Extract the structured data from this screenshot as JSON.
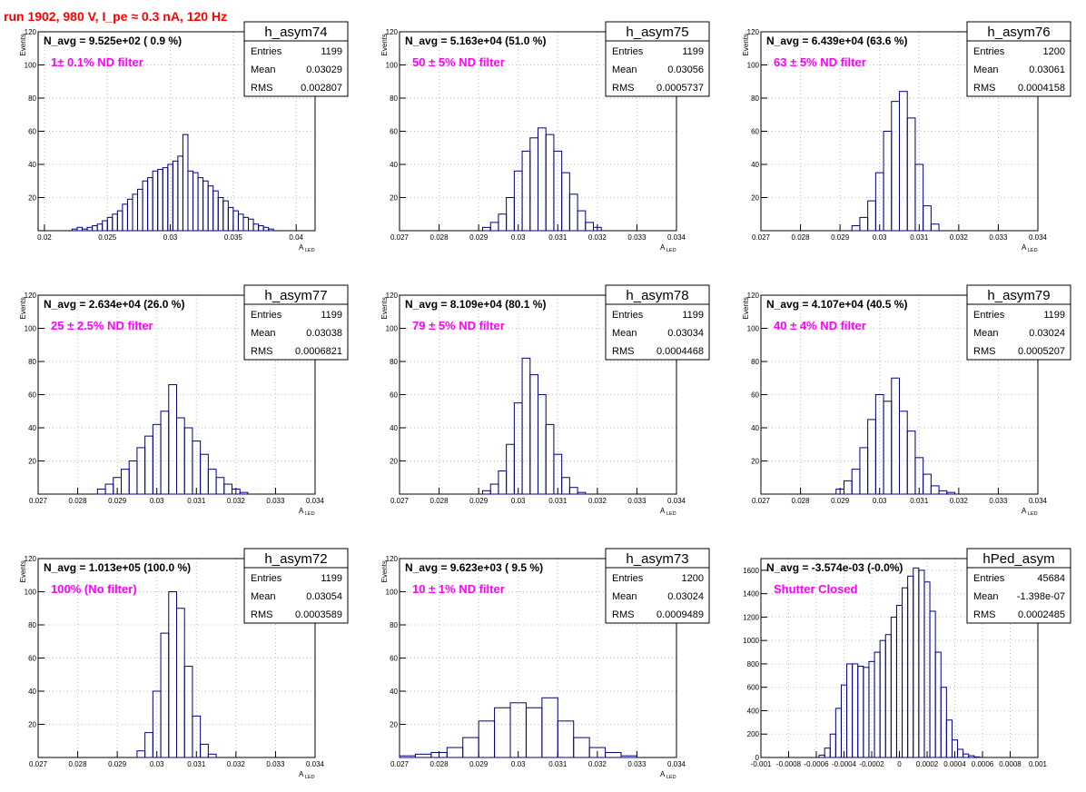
{
  "header": {
    "run_title": "run 1902,   980 V, I_pe ≈ 0.3 nA, 120 Hz"
  },
  "colors": {
    "histogram": "#000080",
    "filter_label": "#ff00ff",
    "title": "#ff0000",
    "grid": "#bdbdbd"
  },
  "stat_labels": {
    "entries": "Entries",
    "mean": "Mean",
    "rms": "RMS"
  },
  "chart_data": [
    {
      "type": "histogram",
      "name": "h_asym74",
      "header": "N_avg = 9.525e+02 ( 0.9 %)",
      "filter": "1± 0.1% ND filter",
      "stats": {
        "entries": "1199",
        "mean": "0.03029",
        "rms": "0.002807"
      },
      "xlabel": "A",
      "xlabel_sub": "LED",
      "ylabel": "Events",
      "xlim": [
        0.0195,
        0.0415
      ],
      "ylim": [
        0,
        120
      ],
      "xticks": [
        0.02,
        0.025,
        0.03,
        0.035,
        0.04
      ],
      "xtick_labels": [
        "0.02",
        "0.025",
        "0.03",
        "0.035",
        "0.04"
      ],
      "yticks": [
        0,
        20,
        40,
        60,
        80,
        100,
        120
      ],
      "ytick_labels": [
        "",
        "20",
        "40",
        "60",
        "80",
        "100",
        "120"
      ],
      "x": [
        0.0224,
        0.0228,
        0.0232,
        0.0236,
        0.024,
        0.0244,
        0.0248,
        0.0252,
        0.0256,
        0.026,
        0.0264,
        0.0268,
        0.0272,
        0.0276,
        0.028,
        0.0284,
        0.0288,
        0.0292,
        0.0296,
        0.03,
        0.0304,
        0.0308,
        0.0312,
        0.0316,
        0.032,
        0.0324,
        0.0328,
        0.0332,
        0.0336,
        0.034,
        0.0344,
        0.0348,
        0.0352,
        0.0356,
        0.036,
        0.0364,
        0.0368,
        0.0372,
        0.0376,
        0.038
      ],
      "y": [
        1,
        2,
        1,
        2,
        3,
        4,
        6,
        8,
        10,
        12,
        16,
        19,
        22,
        25,
        30,
        32,
        36,
        37,
        38,
        40,
        42,
        45,
        58,
        36,
        35,
        32,
        30,
        27,
        24,
        20,
        18,
        14,
        12,
        10,
        8,
        7,
        4,
        3,
        2,
        1
      ]
    },
    {
      "type": "histogram",
      "name": "h_asym75",
      "header": "N_avg = 5.163e+04 (51.0 %)",
      "filter": "50 ± 5% ND filter",
      "stats": {
        "entries": "1199",
        "mean": "0.03056",
        "rms": "0.0005737"
      },
      "xlabel": "A",
      "xlabel_sub": "LED",
      "ylabel": "Events",
      "xlim": [
        0.027,
        0.034
      ],
      "ylim": [
        0,
        120
      ],
      "xticks": [
        0.027,
        0.028,
        0.029,
        0.03,
        0.031,
        0.032,
        0.033,
        0.034
      ],
      "xtick_labels": [
        "0.027",
        "0.028",
        "0.029",
        "0.03",
        "0.031",
        "0.032",
        "0.033",
        "0.034"
      ],
      "yticks": [
        0,
        20,
        40,
        60,
        80,
        100,
        120
      ],
      "ytick_labels": [
        "",
        "20",
        "40",
        "60",
        "80",
        "100",
        "120"
      ],
      "x": [
        0.0292,
        0.0294,
        0.0296,
        0.0298,
        0.03,
        0.0302,
        0.0304,
        0.0306,
        0.0308,
        0.031,
        0.0312,
        0.0314,
        0.0316,
        0.0318,
        0.032
      ],
      "y": [
        2,
        5,
        10,
        20,
        36,
        48,
        56,
        62,
        58,
        48,
        35,
        22,
        12,
        5,
        2
      ]
    },
    {
      "type": "histogram",
      "name": "h_asym76",
      "header": "N_avg = 6.439e+04 (63.6 %)",
      "filter": "63 ± 5% ND filter",
      "stats": {
        "entries": "1200",
        "mean": "0.03061",
        "rms": "0.0004158"
      },
      "xlabel": "A",
      "xlabel_sub": "LED",
      "ylabel": "Events",
      "xlim": [
        0.027,
        0.034
      ],
      "ylim": [
        0,
        120
      ],
      "xticks": [
        0.027,
        0.028,
        0.029,
        0.03,
        0.031,
        0.032,
        0.033,
        0.034
      ],
      "xtick_labels": [
        "0.027",
        "0.028",
        "0.029",
        "0.03",
        "0.031",
        "0.032",
        "0.033",
        "0.034"
      ],
      "yticks": [
        0,
        20,
        40,
        60,
        80,
        100,
        120
      ],
      "ytick_labels": [
        "",
        "20",
        "40",
        "60",
        "80",
        "100",
        "120"
      ],
      "x": [
        0.0294,
        0.0296,
        0.0298,
        0.03,
        0.0302,
        0.0304,
        0.0306,
        0.0308,
        0.031,
        0.0312,
        0.0314
      ],
      "y": [
        3,
        8,
        18,
        35,
        60,
        78,
        84,
        68,
        40,
        15,
        4
      ]
    },
    {
      "type": "histogram",
      "name": "h_asym77",
      "header": "N_avg = 2.634e+04 (26.0 %)",
      "filter": "25 ± 2.5% ND filter",
      "stats": {
        "entries": "1199",
        "mean": "0.03038",
        "rms": "0.0006821"
      },
      "xlabel": "A",
      "xlabel_sub": "LED",
      "ylabel": "Events",
      "xlim": [
        0.027,
        0.034
      ],
      "ylim": [
        0,
        120
      ],
      "xticks": [
        0.027,
        0.028,
        0.029,
        0.03,
        0.031,
        0.032,
        0.033,
        0.034
      ],
      "xtick_labels": [
        "0.027",
        "0.028",
        "0.029",
        "0.03",
        "0.031",
        "0.032",
        "0.033",
        "0.034"
      ],
      "yticks": [
        0,
        20,
        40,
        60,
        80,
        100,
        120
      ],
      "ytick_labels": [
        "",
        "20",
        "40",
        "60",
        "80",
        "100",
        "120"
      ],
      "x": [
        0.0286,
        0.0288,
        0.029,
        0.0292,
        0.0294,
        0.0296,
        0.0298,
        0.03,
        0.0302,
        0.0304,
        0.0306,
        0.0308,
        0.031,
        0.0312,
        0.0314,
        0.0316,
        0.0318,
        0.032,
        0.0322
      ],
      "y": [
        3,
        6,
        10,
        15,
        20,
        28,
        35,
        42,
        50,
        66,
        46,
        40,
        32,
        24,
        15,
        10,
        6,
        3,
        1
      ]
    },
    {
      "type": "histogram",
      "name": "h_asym78",
      "header": "N_avg = 8.109e+04 (80.1 %)",
      "filter": "79 ± 5% ND filter",
      "stats": {
        "entries": "1199",
        "mean": "0.03034",
        "rms": "0.0004468"
      },
      "xlabel": "A",
      "xlabel_sub": "LED",
      "ylabel": "Events",
      "xlim": [
        0.027,
        0.034
      ],
      "ylim": [
        0,
        120
      ],
      "xticks": [
        0.027,
        0.028,
        0.029,
        0.03,
        0.031,
        0.032,
        0.033,
        0.034
      ],
      "xtick_labels": [
        "0.027",
        "0.028",
        "0.029",
        "0.03",
        "0.031",
        "0.032",
        "0.033",
        "0.034"
      ],
      "yticks": [
        0,
        20,
        40,
        60,
        80,
        100,
        120
      ],
      "ytick_labels": [
        "",
        "20",
        "40",
        "60",
        "80",
        "100",
        "120"
      ],
      "x": [
        0.0292,
        0.0294,
        0.0296,
        0.0298,
        0.03,
        0.0302,
        0.0304,
        0.0306,
        0.0308,
        0.031,
        0.0312,
        0.0314,
        0.0316
      ],
      "y": [
        2,
        6,
        14,
        30,
        55,
        82,
        72,
        60,
        42,
        24,
        10,
        4,
        1
      ]
    },
    {
      "type": "histogram",
      "name": "h_asym79",
      "header": "N_avg = 4.107e+04 (40.5 %)",
      "filter": "40 ± 4% ND filter",
      "stats": {
        "entries": "1199",
        "mean": "0.03024",
        "rms": "0.0005207"
      },
      "xlabel": "A",
      "xlabel_sub": "LED",
      "ylabel": "Events",
      "xlim": [
        0.027,
        0.034
      ],
      "ylim": [
        0,
        120
      ],
      "xticks": [
        0.027,
        0.028,
        0.029,
        0.03,
        0.031,
        0.032,
        0.033,
        0.034
      ],
      "xtick_labels": [
        "0.027",
        "0.028",
        "0.029",
        "0.03",
        "0.031",
        "0.032",
        "0.033",
        "0.034"
      ],
      "yticks": [
        0,
        20,
        40,
        60,
        80,
        100,
        120
      ],
      "ytick_labels": [
        "",
        "20",
        "40",
        "60",
        "80",
        "100",
        "120"
      ],
      "x": [
        0.029,
        0.0292,
        0.0294,
        0.0296,
        0.0298,
        0.03,
        0.0302,
        0.0304,
        0.0306,
        0.0308,
        0.031,
        0.0312,
        0.0314,
        0.0316,
        0.0318
      ],
      "y": [
        3,
        8,
        15,
        28,
        45,
        60,
        56,
        70,
        50,
        38,
        22,
        12,
        5,
        2,
        1
      ]
    },
    {
      "type": "histogram",
      "name": "h_asym72",
      "header": "N_avg = 1.013e+05 (100.0 %)",
      "filter": "100% (No filter)",
      "stats": {
        "entries": "1199",
        "mean": "0.03054",
        "rms": "0.0003589"
      },
      "xlabel": "A",
      "xlabel_sub": "LED",
      "ylabel": "Events",
      "xlim": [
        0.027,
        0.034
      ],
      "ylim": [
        0,
        120
      ],
      "xticks": [
        0.027,
        0.028,
        0.029,
        0.03,
        0.031,
        0.032,
        0.033,
        0.034
      ],
      "xtick_labels": [
        "0.027",
        "0.028",
        "0.029",
        "0.03",
        "0.031",
        "0.032",
        "0.033",
        "0.034"
      ],
      "yticks": [
        0,
        20,
        40,
        60,
        80,
        100,
        120
      ],
      "ytick_labels": [
        "",
        "20",
        "40",
        "60",
        "80",
        "100",
        "120"
      ],
      "x": [
        0.0296,
        0.0298,
        0.03,
        0.0302,
        0.0304,
        0.0306,
        0.0308,
        0.031,
        0.0312,
        0.0314
      ],
      "y": [
        4,
        15,
        40,
        75,
        100,
        90,
        55,
        25,
        8,
        2
      ]
    },
    {
      "type": "histogram",
      "name": "h_asym73",
      "header": "N_avg = 9.623e+03 ( 9.5 %)",
      "filter": "10 ± 1% ND filter",
      "stats": {
        "entries": "1200",
        "mean": "0.03024",
        "rms": "0.0009489"
      },
      "xlabel": "A",
      "xlabel_sub": "LED",
      "ylabel": "Events",
      "xlim": [
        0.027,
        0.034
      ],
      "ylim": [
        0,
        120
      ],
      "xticks": [
        0.027,
        0.028,
        0.029,
        0.03,
        0.031,
        0.032,
        0.033,
        0.034
      ],
      "xtick_labels": [
        "0.027",
        "0.028",
        "0.029",
        "0.03",
        "0.031",
        "0.032",
        "0.033",
        "0.034"
      ],
      "yticks": [
        0,
        20,
        40,
        60,
        80,
        100,
        120
      ],
      "ytick_labels": [
        "",
        "20",
        "40",
        "60",
        "80",
        "100",
        "120"
      ],
      "x": [
        0.0272,
        0.0276,
        0.028,
        0.0284,
        0.0288,
        0.0292,
        0.0296,
        0.03,
        0.0304,
        0.0308,
        0.0312,
        0.0316,
        0.032,
        0.0324,
        0.0328
      ],
      "y": [
        1,
        2,
        3,
        6,
        12,
        22,
        30,
        33,
        30,
        36,
        22,
        12,
        6,
        3,
        1
      ]
    },
    {
      "type": "histogram",
      "name": "hPed_asym",
      "header": "N_avg = -3.574e-03 (-0.0%)",
      "filter": "Shutter Closed",
      "stats": {
        "entries": "45684",
        "mean": "-1.398e-07",
        "rms": "0.0002485"
      },
      "xlabel": "",
      "xlabel_sub": "",
      "ylabel": "",
      "xlim": [
        -0.001,
        0.001
      ],
      "ylim": [
        0,
        1700
      ],
      "xticks": [
        -0.001,
        -0.0008,
        -0.0006,
        -0.0004,
        -0.0002,
        0,
        0.0002,
        0.0004,
        0.0006,
        0.0008,
        0.001
      ],
      "xtick_labels": [
        "-0.001",
        "-0.0008",
        "-0.0006",
        "-0.0004",
        "-0.0002",
        "0",
        "0.0002",
        "0.0004",
        "0.0006",
        "0.0008",
        "0.001"
      ],
      "yticks": [
        0,
        200,
        400,
        600,
        800,
        1000,
        1200,
        1400,
        1600
      ],
      "ytick_labels": [
        "0",
        "200",
        "400",
        "600",
        "800",
        "1000",
        "1200",
        "1400",
        "1600"
      ],
      "x": [
        -0.00056,
        -0.00052,
        -0.00048,
        -0.00044,
        -0.0004,
        -0.00036,
        -0.00032,
        -0.00028,
        -0.00024,
        -0.0002,
        -0.00016,
        -0.00012,
        -8e-05,
        -4e-05,
        0,
        4e-05,
        8e-05,
        0.00012,
        0.00016,
        0.0002,
        0.00024,
        0.00028,
        0.00032,
        0.00036,
        0.0004,
        0.00044,
        0.00048,
        0.00052,
        0.00056
      ],
      "y": [
        20,
        80,
        200,
        420,
        620,
        800,
        800,
        780,
        770,
        820,
        900,
        1000,
        1050,
        1200,
        1300,
        1450,
        1550,
        1620,
        1600,
        1500,
        1250,
        900,
        600,
        320,
        150,
        70,
        30,
        15,
        5
      ]
    }
  ]
}
